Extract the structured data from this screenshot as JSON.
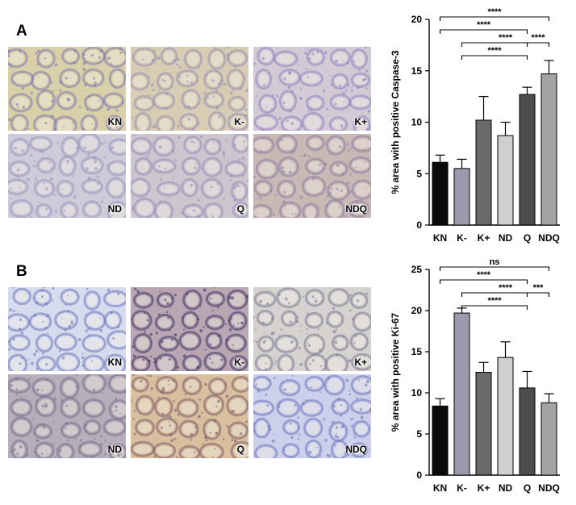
{
  "panels": [
    {
      "letter": "A",
      "micrographs": [
        {
          "label": "KN",
          "tint": "#d9cfa8",
          "stain": "#7f7ab3"
        },
        {
          "label": "K-",
          "tint": "#d8cdb3",
          "stain": "#9a8fb7"
        },
        {
          "label": "K+",
          "tint": "#d4cad6",
          "stain": "#8a86c0"
        },
        {
          "label": "ND",
          "tint": "#cfcbd8",
          "stain": "#9a95bd"
        },
        {
          "label": "Q",
          "tint": "#cec6cf",
          "stain": "#9890b8"
        },
        {
          "label": "NDQ",
          "tint": "#c8b9b4",
          "stain": "#8f7fa8"
        }
      ]
    },
    {
      "letter": "B",
      "micrographs": [
        {
          "label": "KN",
          "tint": "#d7dbee",
          "stain": "#6d76b8"
        },
        {
          "label": "K-",
          "tint": "#b9a6b2",
          "stain": "#3e3366"
        },
        {
          "label": "K+",
          "tint": "#d5d2cf",
          "stain": "#7d7a96"
        },
        {
          "label": "ND",
          "tint": "#b7aebb",
          "stain": "#7b6f8c"
        },
        {
          "label": "Q",
          "tint": "#d8bf9e",
          "stain": "#7d5c6c"
        },
        {
          "label": "NDQ",
          "tint": "#cdd0ea",
          "stain": "#6e74b8"
        }
      ]
    }
  ],
  "chart_data": [
    {
      "type": "bar",
      "ylabel": "% area with positive Caspase-3",
      "categories": [
        "KN",
        "K-",
        "K+",
        "ND",
        "Q",
        "NDQ"
      ],
      "values": [
        6.1,
        5.5,
        10.2,
        8.7,
        12.7,
        14.7
      ],
      "errors": [
        0.7,
        0.9,
        2.3,
        1.3,
        0.7,
        1.3
      ],
      "colors": [
        "#0a0a0a",
        "#9a9aac",
        "#6a6a6a",
        "#cfcfcf",
        "#4d4d4d",
        "#a3a3a3"
      ],
      "ylim": [
        0,
        20
      ],
      "yticks": [
        "0",
        "5",
        "10",
        "15",
        "20"
      ],
      "significance": [
        {
          "from": 0,
          "to": 5,
          "label": "****"
        },
        {
          "from": 0,
          "to": 4,
          "label": "****"
        },
        {
          "from": 1,
          "to": 5,
          "label": "****"
        },
        {
          "from": 4,
          "to": 5,
          "label": "****"
        },
        {
          "from": 1,
          "to": 4,
          "label": "****"
        }
      ]
    },
    {
      "type": "bar",
      "ylabel": "% area with positive Ki-67",
      "categories": [
        "KN",
        "K-",
        "K+",
        "ND",
        "Q",
        "NDQ"
      ],
      "values": [
        8.4,
        19.7,
        12.5,
        14.3,
        10.6,
        8.8
      ],
      "errors": [
        0.9,
        0.6,
        1.2,
        1.9,
        2.0,
        1.1
      ],
      "colors": [
        "#0a0a0a",
        "#9a9aac",
        "#6a6a6a",
        "#cfcfcf",
        "#4d4d4d",
        "#a3a3a3"
      ],
      "ylim": [
        0,
        25
      ],
      "yticks": [
        "0",
        "5",
        "10",
        "15",
        "20",
        "25"
      ],
      "significance": [
        {
          "from": 0,
          "to": 5,
          "label": "ns"
        },
        {
          "from": 0,
          "to": 4,
          "label": "****"
        },
        {
          "from": 1,
          "to": 5,
          "label": "****"
        },
        {
          "from": 4,
          "to": 5,
          "label": "***"
        },
        {
          "from": 1,
          "to": 4,
          "label": "****"
        }
      ]
    }
  ]
}
